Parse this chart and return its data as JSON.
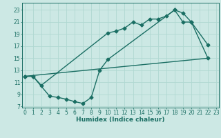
{
  "bg_color": "#cce8e4",
  "grid_color": "#b0d8d2",
  "line_color": "#1a6e63",
  "line_width": 1.0,
  "marker": "D",
  "marker_size": 2.5,
  "curve1_x": [
    0,
    1,
    2,
    10,
    11,
    12,
    13,
    14,
    15,
    16,
    17,
    18,
    19,
    20,
    22
  ],
  "curve1_y": [
    12,
    12,
    10.5,
    19.2,
    19.5,
    20.0,
    21.0,
    20.5,
    21.5,
    21.5,
    22.0,
    23.0,
    22.5,
    21.0,
    17.2
  ],
  "curve2_x": [
    0,
    1,
    3,
    4,
    5,
    6,
    7,
    8,
    9,
    10,
    18,
    19,
    20,
    22
  ],
  "curve2_y": [
    12,
    12,
    8.7,
    8.5,
    8.2,
    7.8,
    7.5,
    8.5,
    13.0,
    14.8,
    23.0,
    21.0,
    21.0,
    15.0
  ],
  "curve3_x": [
    0,
    22
  ],
  "curve3_y": [
    12,
    15
  ],
  "xlim": [
    -0.3,
    23.3
  ],
  "ylim": [
    6.8,
    24.2
  ],
  "xticks": [
    0,
    1,
    2,
    3,
    4,
    5,
    6,
    7,
    8,
    9,
    10,
    11,
    12,
    13,
    14,
    15,
    16,
    17,
    18,
    19,
    20,
    21,
    22,
    23
  ],
  "yticks": [
    7,
    9,
    11,
    13,
    15,
    17,
    19,
    21,
    23
  ],
  "xlabel": "Humidex (Indice chaleur)",
  "xlabel_fontsize": 6.5,
  "tick_fontsize": 5.5
}
